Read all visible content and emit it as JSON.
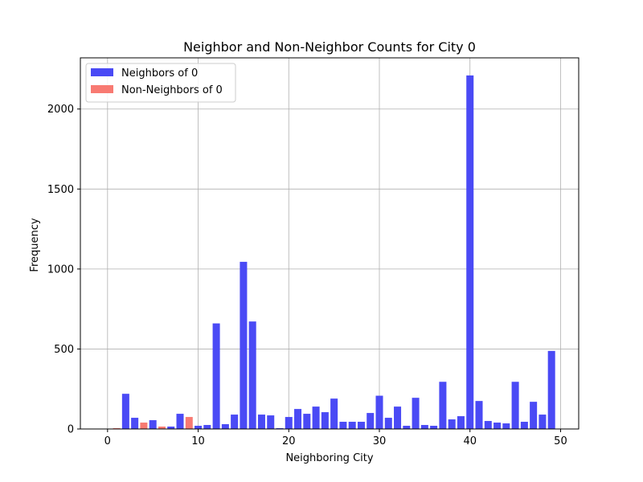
{
  "chart_data": {
    "type": "bar",
    "title": "Neighbor and Non-Neighbor Counts for City 0",
    "xlabel": "Neighboring City",
    "ylabel": "Frequency",
    "xlim": [
      -3,
      52
    ],
    "ylim": [
      0,
      2320
    ],
    "xticks": [
      0,
      10,
      20,
      30,
      40,
      50
    ],
    "yticks": [
      0,
      500,
      1000,
      1500,
      2000
    ],
    "grid": true,
    "legend_position": "top-left",
    "series": [
      {
        "name": "Neighbors of 0",
        "color": "#4a4af5",
        "points": [
          {
            "x": 2,
            "y": 220
          },
          {
            "x": 3,
            "y": 70
          },
          {
            "x": 5,
            "y": 55
          },
          {
            "x": 7,
            "y": 15
          },
          {
            "x": 8,
            "y": 95
          },
          {
            "x": 10,
            "y": 20
          },
          {
            "x": 11,
            "y": 25
          },
          {
            "x": 12,
            "y": 660
          },
          {
            "x": 13,
            "y": 30
          },
          {
            "x": 14,
            "y": 90
          },
          {
            "x": 15,
            "y": 1045
          },
          {
            "x": 16,
            "y": 672
          },
          {
            "x": 17,
            "y": 90
          },
          {
            "x": 18,
            "y": 85
          },
          {
            "x": 19,
            "y": 5
          },
          {
            "x": 20,
            "y": 75
          },
          {
            "x": 21,
            "y": 125
          },
          {
            "x": 22,
            "y": 95
          },
          {
            "x": 23,
            "y": 140
          },
          {
            "x": 24,
            "y": 105
          },
          {
            "x": 25,
            "y": 190
          },
          {
            "x": 26,
            "y": 45
          },
          {
            "x": 27,
            "y": 45
          },
          {
            "x": 28,
            "y": 45
          },
          {
            "x": 29,
            "y": 100
          },
          {
            "x": 30,
            "y": 208
          },
          {
            "x": 31,
            "y": 70
          },
          {
            "x": 32,
            "y": 140
          },
          {
            "x": 33,
            "y": 20
          },
          {
            "x": 34,
            "y": 195
          },
          {
            "x": 35,
            "y": 25
          },
          {
            "x": 36,
            "y": 20
          },
          {
            "x": 37,
            "y": 295
          },
          {
            "x": 38,
            "y": 60
          },
          {
            "x": 39,
            "y": 80
          },
          {
            "x": 40,
            "y": 2210
          },
          {
            "x": 41,
            "y": 175
          },
          {
            "x": 42,
            "y": 50
          },
          {
            "x": 43,
            "y": 40
          },
          {
            "x": 44,
            "y": 35
          },
          {
            "x": 45,
            "y": 295
          },
          {
            "x": 46,
            "y": 45
          },
          {
            "x": 47,
            "y": 170
          },
          {
            "x": 48,
            "y": 90
          },
          {
            "x": 49,
            "y": 488
          }
        ]
      },
      {
        "name": "Non-Neighbors of 0",
        "color": "#f87a72",
        "points": [
          {
            "x": 1,
            "y": 5
          },
          {
            "x": 4,
            "y": 40
          },
          {
            "x": 6,
            "y": 15
          },
          {
            "x": 9,
            "y": 75
          }
        ]
      }
    ]
  }
}
